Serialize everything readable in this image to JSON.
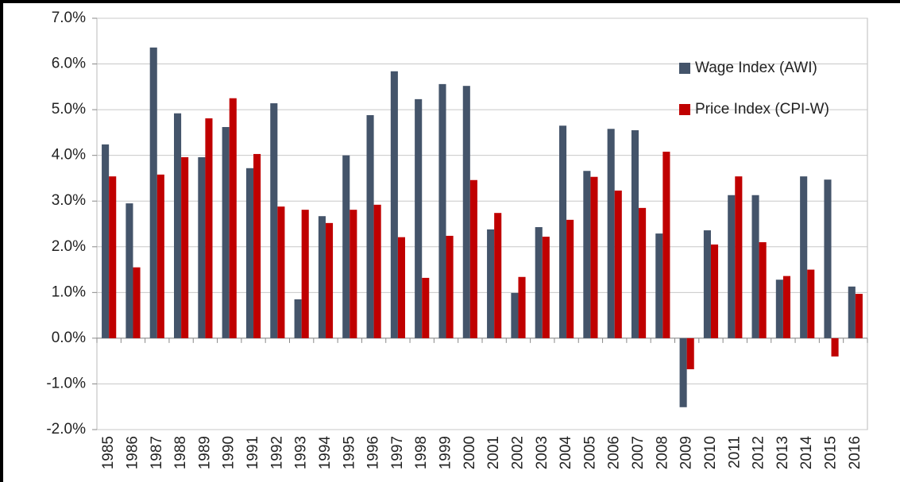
{
  "chart_data": {
    "type": "bar",
    "categories": [
      "1985",
      "1986",
      "1987",
      "1988",
      "1989",
      "1990",
      "1991",
      "1992",
      "1993",
      "1994",
      "1995",
      "1996",
      "1997",
      "1998",
      "1999",
      "2000",
      "2001",
      "2002",
      "2003",
      "2004",
      "2005",
      "2006",
      "2007",
      "2008",
      "2009",
      "2010",
      "2011",
      "2012",
      "2013",
      "2014",
      "2015",
      "2016"
    ],
    "series": [
      {
        "name": "Wage Index (AWI)",
        "color": "#44546a",
        "values": [
          4.24,
          2.95,
          6.36,
          4.92,
          3.96,
          4.62,
          3.72,
          5.14,
          0.85,
          2.67,
          4.0,
          4.88,
          5.84,
          5.23,
          5.56,
          5.52,
          2.38,
          0.99,
          2.43,
          4.65,
          3.66,
          4.58,
          4.55,
          2.29,
          -1.51,
          2.36,
          3.13,
          3.13,
          1.28,
          3.54,
          3.47,
          1.13
        ]
      },
      {
        "name": "Price Index (CPI-W)",
        "color": "#c00000",
        "values": [
          3.54,
          1.55,
          3.58,
          3.96,
          4.81,
          5.25,
          4.03,
          2.88,
          2.81,
          2.52,
          2.81,
          2.92,
          2.21,
          1.32,
          2.24,
          3.46,
          2.74,
          1.34,
          2.22,
          2.59,
          3.53,
          3.23,
          2.85,
          4.08,
          -0.68,
          2.05,
          3.54,
          2.1,
          1.36,
          1.5,
          -0.4,
          0.97
        ]
      }
    ],
    "ylim": [
      -2,
      7
    ],
    "yticks": [
      {
        "value": -2,
        "label": "-2.0%"
      },
      {
        "value": -1,
        "label": "-1.0%"
      },
      {
        "value": 0,
        "label": "0.0%"
      },
      {
        "value": 1,
        "label": "1.0%"
      },
      {
        "value": 2,
        "label": "2.0%"
      },
      {
        "value": 3,
        "label": "3.0%"
      },
      {
        "value": 4,
        "label": "4.0%"
      },
      {
        "value": 5,
        "label": "5.0%"
      },
      {
        "value": 6,
        "label": "6.0%"
      },
      {
        "value": 7,
        "label": "7.0%"
      }
    ],
    "grid": true,
    "legend": "top-right"
  }
}
